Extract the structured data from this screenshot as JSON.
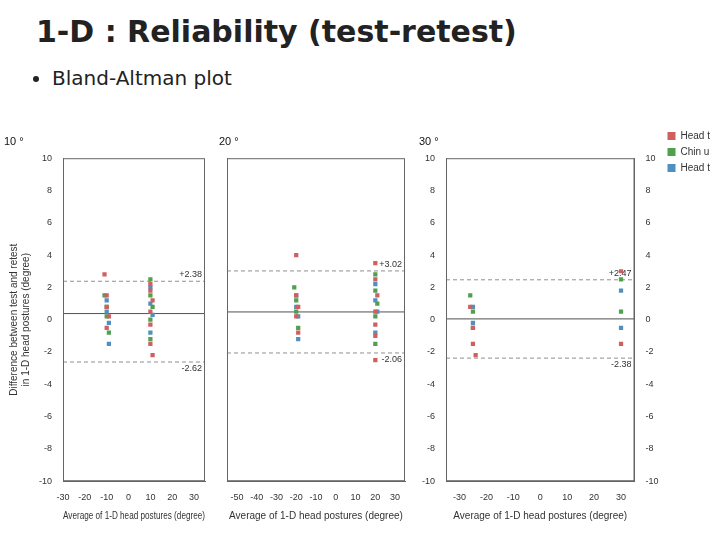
{
  "title": "1-D : Reliability (test-retest)",
  "subtitle": "Bland-Altman plot",
  "chart_data": [
    {
      "type": "scatter",
      "title": "10 °",
      "xlabel": "Average of 1-D head postures (degree)",
      "ylabel": "Difference between test and retest\nin 1-D head postures (degree)",
      "xlim": [
        -30,
        35
      ],
      "ylim": [
        -10,
        10
      ],
      "xticks": [
        -30,
        -20,
        -10,
        0,
        10,
        20,
        30
      ],
      "yticks": [
        -10,
        -8,
        -6,
        -4,
        -2,
        0,
        2,
        4,
        6,
        8,
        10
      ],
      "grid": false,
      "reference_lines": [
        {
          "value": 0.38,
          "color": "#505050",
          "line_style": "solid"
        },
        {
          "value": 2.38,
          "label": "+2.38",
          "color": "#909090",
          "line_style": "dashed"
        },
        {
          "value": -2.62,
          "label": "-2.62",
          "color": "#909090",
          "line_style": "dashed"
        }
      ],
      "series": [
        {
          "name": "Head turn",
          "color": "#d06060",
          "marker": "square",
          "x": [
            -11,
            -10,
            -10,
            -9,
            -10,
            10,
            10,
            11,
            10,
            10,
            10,
            11
          ],
          "values": [
            2.8,
            1.5,
            0.8,
            0.2,
            -0.5,
            2.2,
            1.8,
            1.2,
            0.5,
            -0.3,
            -1.5,
            -2.2
          ]
        },
        {
          "name": "Chin up/down",
          "color": "#50a050",
          "marker": "square",
          "x": [
            -11,
            -10,
            -10,
            -9,
            10,
            10,
            11,
            10,
            10
          ],
          "values": [
            1.5,
            0.8,
            0.2,
            -0.8,
            2.5,
            1.5,
            0.8,
            0.0,
            -1.2
          ]
        },
        {
          "name": "Head tilt",
          "color": "#5090c0",
          "marker": "square",
          "x": [
            -10,
            -10,
            -9,
            -9,
            10,
            10,
            11,
            10
          ],
          "values": [
            1.2,
            0.5,
            -0.2,
            -1.5,
            2.0,
            1.0,
            0.3,
            -0.8
          ]
        }
      ]
    },
    {
      "type": "scatter",
      "title": "20 °",
      "xlabel": "Average of 1-D head postures (degree)",
      "xlim": [
        -55,
        35
      ],
      "ylim": [
        -10,
        10
      ],
      "xticks": [
        -50,
        -40,
        -30,
        -20,
        -10,
        0,
        10,
        20,
        30
      ],
      "yticks": [
        -10,
        -8,
        -6,
        -4,
        -2,
        0,
        2,
        4,
        6,
        8,
        10
      ],
      "tick_labels": "x",
      "grid": false,
      "reference_lines": [
        {
          "value": 0.48,
          "color": "#505050",
          "line_style": "solid"
        },
        {
          "value": 3.02,
          "label": "+3.02",
          "color": "#909090",
          "line_style": "dashed"
        },
        {
          "value": -2.06,
          "label": "-2.06",
          "color": "#909090",
          "line_style": "dashed"
        }
      ],
      "series": [
        {
          "name": "Head turn",
          "color": "#d06060",
          "marker": "square",
          "x": [
            -20,
            -20,
            -19,
            -20,
            -19,
            20,
            20,
            21,
            20,
            20,
            20,
            20
          ],
          "values": [
            4.0,
            1.5,
            0.8,
            0.2,
            -0.8,
            3.5,
            2.5,
            1.5,
            0.5,
            -0.3,
            -1.0,
            -2.5
          ]
        },
        {
          "name": "Chin up/down",
          "color": "#50a050",
          "marker": "square",
          "x": [
            -21,
            -20,
            -20,
            -19,
            20,
            20,
            21,
            20,
            20
          ],
          "values": [
            2.0,
            1.2,
            0.5,
            -0.5,
            2.8,
            1.8,
            1.0,
            0.2,
            -1.5
          ]
        },
        {
          "name": "Head tilt",
          "color": "#5090c0",
          "marker": "square",
          "x": [
            -20,
            -20,
            -19,
            -19,
            20,
            20,
            21,
            20
          ],
          "values": [
            1.5,
            0.8,
            0.2,
            -1.2,
            2.2,
            1.2,
            0.5,
            -0.8
          ]
        }
      ]
    },
    {
      "type": "scatter",
      "title": "30 °",
      "xlabel": "Average of 1-D head postures (degree)",
      "xlim": [
        -35,
        35
      ],
      "ylim": [
        -10,
        10
      ],
      "xticks": [
        -30,
        -20,
        -10,
        0,
        10,
        20,
        30
      ],
      "yticks": [
        -10,
        -8,
        -6,
        -4,
        -2,
        0,
        2,
        4,
        6,
        8,
        10
      ],
      "y2lim": [
        -10,
        10
      ],
      "y2ticks": [
        -10,
        -8,
        -6,
        -4,
        -2,
        0,
        2,
        4,
        6,
        8,
        10
      ],
      "grid": false,
      "legend": "right",
      "reference_lines": [
        {
          "value": 0.05,
          "color": "#505050",
          "line_style": "solid"
        },
        {
          "value": 2.47,
          "label": "+2.47",
          "color": "#909090",
          "line_style": "dashed"
        },
        {
          "value": -2.38,
          "label": "-2.38",
          "color": "#909090",
          "line_style": "dashed"
        }
      ],
      "series": [
        {
          "name": "Head turn",
          "color": "#d06060",
          "marker": "square",
          "x": [
            -26,
            -25,
            -25,
            -24,
            30,
            30
          ],
          "values": [
            0.8,
            -0.5,
            -1.5,
            -2.2,
            3.0,
            -1.5
          ]
        },
        {
          "name": "Chin up/down",
          "color": "#50a050",
          "marker": "square",
          "x": [
            -26,
            -25,
            -25,
            30,
            30
          ],
          "values": [
            1.5,
            0.5,
            -0.5,
            2.5,
            0.5
          ]
        },
        {
          "name": "Head tilt",
          "color": "#5090c0",
          "marker": "square",
          "x": [
            -25,
            -25,
            30,
            30
          ],
          "values": [
            0.8,
            -0.2,
            1.8,
            -0.5
          ]
        }
      ]
    }
  ]
}
